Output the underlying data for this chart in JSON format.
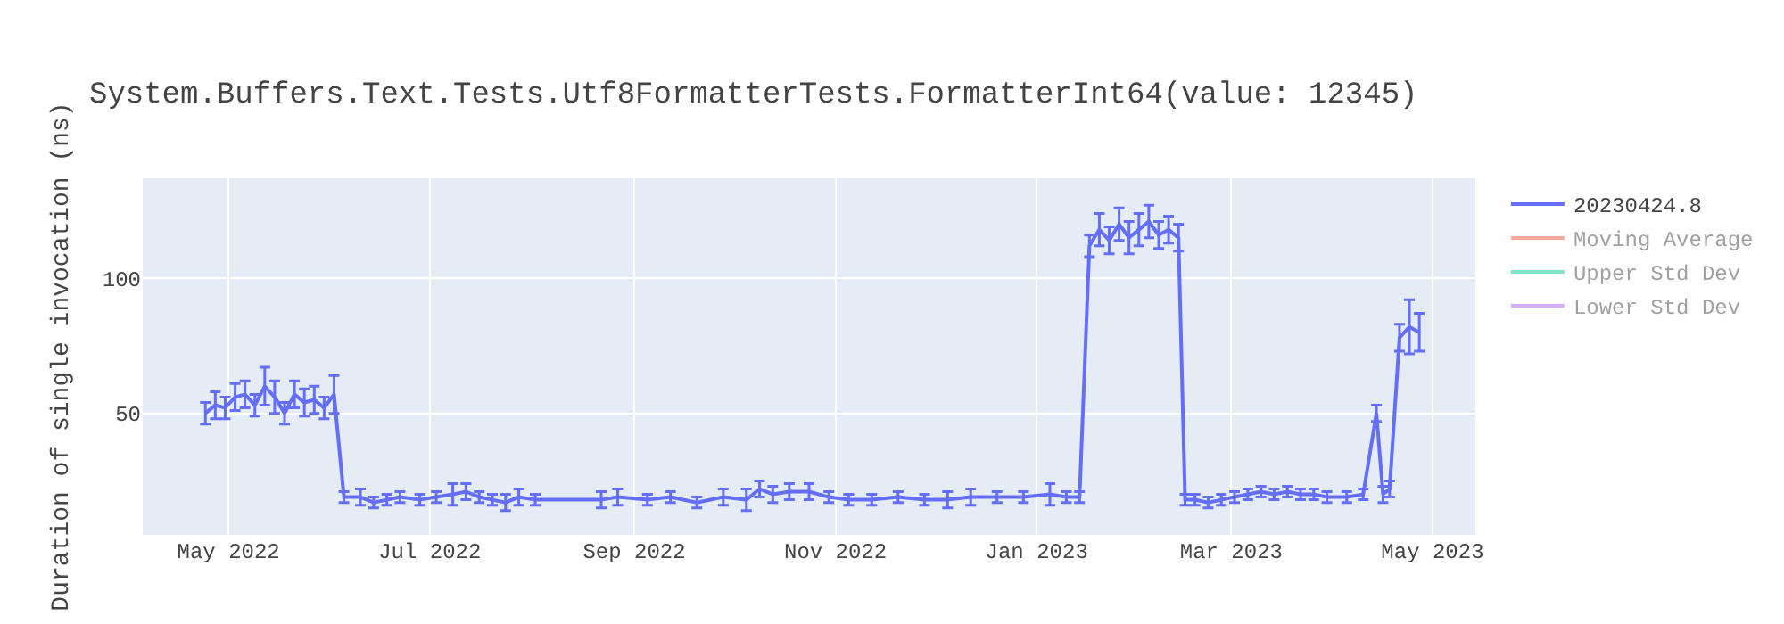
{
  "chart_data": {
    "type": "line",
    "title": "System.Buffers.Text.Tests.Utf8FormatterTests.FormatterInt64(value: 12345)",
    "ylabel": "Duration of single invocation (ns)",
    "x": [
      "2022-04-24",
      "2022-04-27",
      "2022-04-30",
      "2022-05-03",
      "2022-05-06",
      "2022-05-09",
      "2022-05-12",
      "2022-05-15",
      "2022-05-18",
      "2022-05-21",
      "2022-05-24",
      "2022-05-27",
      "2022-05-30",
      "2022-06-02",
      "2022-06-05",
      "2022-06-10",
      "2022-06-14",
      "2022-06-18",
      "2022-06-22",
      "2022-06-28",
      "2022-07-03",
      "2022-07-08",
      "2022-07-12",
      "2022-07-16",
      "2022-07-20",
      "2022-07-24",
      "2022-07-28",
      "2022-08-02",
      "2022-08-22",
      "2022-08-27",
      "2022-09-05",
      "2022-09-12",
      "2022-09-20",
      "2022-09-28",
      "2022-10-05",
      "2022-10-09",
      "2022-10-13",
      "2022-10-18",
      "2022-10-24",
      "2022-10-30",
      "2022-11-05",
      "2022-11-12",
      "2022-11-20",
      "2022-11-28",
      "2022-12-05",
      "2022-12-12",
      "2022-12-20",
      "2022-12-28",
      "2023-01-05",
      "2023-01-10",
      "2023-01-14",
      "2023-01-17",
      "2023-01-20",
      "2023-01-23",
      "2023-01-26",
      "2023-01-29",
      "2023-02-01",
      "2023-02-04",
      "2023-02-07",
      "2023-02-10",
      "2023-02-13",
      "2023-02-15",
      "2023-02-18",
      "2023-02-22",
      "2023-02-26",
      "2023-03-02",
      "2023-03-06",
      "2023-03-10",
      "2023-03-14",
      "2023-03-18",
      "2023-03-22",
      "2023-03-26",
      "2023-03-30",
      "2023-04-05",
      "2023-04-10",
      "2023-04-14",
      "2023-04-16",
      "2023-04-18",
      "2023-04-21",
      "2023-04-24",
      "2023-04-27"
    ],
    "series": [
      {
        "name": "20230424.8",
        "color": "#636efa",
        "values": [
          50,
          53,
          52,
          56,
          57,
          53,
          60,
          56,
          50,
          57,
          54,
          55,
          52,
          57,
          19,
          19,
          17,
          18,
          19,
          18,
          19,
          20,
          21,
          19,
          18,
          17,
          19,
          18,
          18,
          19,
          18,
          19,
          17,
          19,
          18,
          22,
          20,
          21,
          21,
          19,
          18,
          18,
          19,
          18,
          18,
          19,
          19,
          19,
          20,
          19,
          19,
          112,
          118,
          114,
          120,
          115,
          118,
          121,
          116,
          118,
          115,
          18,
          18,
          17,
          18,
          19,
          20,
          21,
          20,
          21,
          20,
          20,
          19,
          19,
          20,
          50,
          20,
          22,
          78,
          82,
          80
        ],
        "errors": [
          4,
          5,
          4,
          5,
          5,
          4,
          7,
          6,
          4,
          5,
          5,
          5,
          4,
          7,
          2,
          3,
          2,
          2,
          2,
          2,
          2,
          4,
          3,
          2,
          2,
          3,
          3,
          2,
          3,
          3,
          2,
          2,
          2,
          3,
          4,
          3,
          3,
          3,
          3,
          2,
          2,
          2,
          2,
          2,
          3,
          3,
          2,
          2,
          4,
          2,
          2,
          4,
          6,
          5,
          6,
          6,
          6,
          6,
          5,
          5,
          5,
          2,
          2,
          2,
          2,
          2,
          2,
          2,
          2,
          2,
          2,
          2,
          2,
          2,
          2,
          3,
          3,
          3,
          5,
          10,
          7
        ]
      },
      {
        "name": "Moving Average",
        "color": "#ef553b",
        "values": [
          null,
          null,
          null,
          null,
          null,
          null,
          null,
          null,
          null,
          null,
          null,
          null,
          null,
          null,
          null,
          null,
          null,
          null,
          null,
          null,
          null,
          null,
          null,
          null,
          null,
          null,
          null,
          null,
          null,
          null,
          null,
          null,
          null,
          null,
          null,
          null,
          null,
          null,
          null,
          null,
          null,
          null,
          null,
          null,
          null,
          null,
          null,
          null,
          null,
          null,
          null,
          null,
          null,
          null,
          null,
          null,
          null,
          null,
          null,
          null,
          null,
          null,
          null,
          null,
          null,
          null,
          null,
          null,
          null,
          null,
          null,
          null,
          null,
          null,
          null,
          null,
          null,
          null,
          null,
          null,
          null
        ]
      },
      {
        "name": "Upper Std Dev",
        "color": "#00cc96",
        "values": [
          null,
          null,
          null,
          null,
          null,
          null,
          null,
          null,
          null,
          null,
          null,
          null,
          null,
          null,
          null,
          null,
          null,
          null,
          null,
          null,
          null,
          null,
          null,
          null,
          null,
          null,
          null,
          null,
          null,
          null,
          null,
          null,
          null,
          null,
          null,
          null,
          null,
          null,
          null,
          null,
          null,
          null,
          null,
          null,
          null,
          null,
          null,
          null,
          null,
          null,
          null,
          null,
          null,
          null,
          null,
          null,
          null,
          null,
          null,
          null,
          null,
          null,
          null,
          null,
          null,
          null,
          null,
          null,
          null,
          null,
          null,
          null,
          null,
          null,
          null,
          null,
          null,
          null,
          null,
          null,
          null
        ]
      },
      {
        "name": "Lower Std Dev",
        "color": "#ab63fa",
        "values": [
          null,
          null,
          null,
          null,
          null,
          null,
          null,
          null,
          null,
          null,
          null,
          null,
          null,
          null,
          null,
          null,
          null,
          null,
          null,
          null,
          null,
          null,
          null,
          null,
          null,
          null,
          null,
          null,
          null,
          null,
          null,
          null,
          null,
          null,
          null,
          null,
          null,
          null,
          null,
          null,
          null,
          null,
          null,
          null,
          null,
          null,
          null,
          null,
          null,
          null,
          null,
          null,
          null,
          null,
          null,
          null,
          null,
          null,
          null,
          null,
          null,
          null,
          null,
          null,
          null,
          null,
          null,
          null,
          null,
          null,
          null,
          null,
          null,
          null,
          null,
          null,
          null,
          null,
          null,
          null,
          null
        ]
      }
    ],
    "xlim": [
      "2022-04-05",
      "2023-05-14"
    ],
    "xticks": [
      {
        "value": "2022-05-01",
        "label": "May 2022"
      },
      {
        "value": "2022-07-01",
        "label": "Jul 2022"
      },
      {
        "value": "2022-09-01",
        "label": "Sep 2022"
      },
      {
        "value": "2022-11-01",
        "label": "Nov 2022"
      },
      {
        "value": "2023-01-01",
        "label": "Jan 2023"
      },
      {
        "value": "2023-03-01",
        "label": "Mar 2023"
      },
      {
        "value": "2023-05-01",
        "label": "May 2023"
      }
    ],
    "ylim": [
      5,
      137
    ],
    "yticks": [
      50,
      100
    ],
    "grid": true,
    "legend": "top right",
    "line_style": "solid"
  }
}
